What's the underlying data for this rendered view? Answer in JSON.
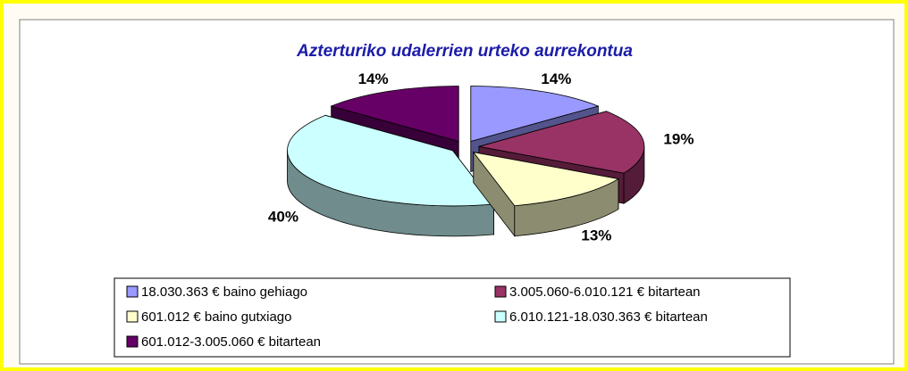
{
  "chart_data": {
    "type": "pie",
    "title": "Azterturiko udalerrien urteko aurrekontua",
    "categories": [
      "18.030.363 € baino gehiago",
      "3.005.060-6.010.121 € bitartean",
      "601.012 € baino gutxiago",
      "6.010.121-18.030.363 € bitartean",
      "601.012-3.005.060 € bitartean"
    ],
    "values": [
      14,
      19,
      13,
      40,
      14
    ],
    "value_labels": [
      "14%",
      "19%",
      "13%",
      "40%",
      "14%"
    ],
    "colors": [
      "#9999ff",
      "#993366",
      "#ffffcc",
      "#ccffff",
      "#660066"
    ],
    "legend": "bottom"
  }
}
